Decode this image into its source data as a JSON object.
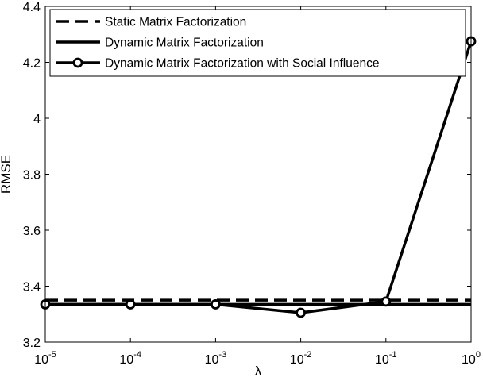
{
  "chart_data": {
    "type": "line",
    "xlabel": "λ",
    "ylabel": "RMSE",
    "x_scale": "log",
    "x": [
      1e-05,
      0.0001,
      0.001,
      0.01,
      0.1,
      1
    ],
    "xlim": [
      1e-05,
      1
    ],
    "ylim": [
      3.2,
      4.4
    ],
    "xticks": [
      {
        "base": "10",
        "exp": "-5"
      },
      {
        "base": "10",
        "exp": "-4"
      },
      {
        "base": "10",
        "exp": "-3"
      },
      {
        "base": "10",
        "exp": "-2"
      },
      {
        "base": "10",
        "exp": "-1"
      },
      {
        "base": "10",
        "exp": "0"
      }
    ],
    "yticks": [
      "3.2",
      "3.4",
      "3.6",
      "3.8",
      "4",
      "4.2",
      "4.4"
    ],
    "grid": false,
    "legend_position": "top-right",
    "series": [
      {
        "name": "Static Matrix Factorization",
        "style": "dashed",
        "color": "#000000",
        "values": [
          3.35,
          3.35,
          3.35,
          3.35,
          3.35,
          3.35
        ]
      },
      {
        "name": "Dynamic Matrix Factorization",
        "style": "solid",
        "color": "#000000",
        "values": [
          3.335,
          3.335,
          3.335,
          3.335,
          3.335,
          3.335
        ]
      },
      {
        "name": "Dynamic Matrix Factorization with Social Influence",
        "style": "solid-circle-markers",
        "color": "#000000",
        "values": [
          3.335,
          3.335,
          3.335,
          3.305,
          3.345,
          4.275
        ]
      }
    ]
  }
}
